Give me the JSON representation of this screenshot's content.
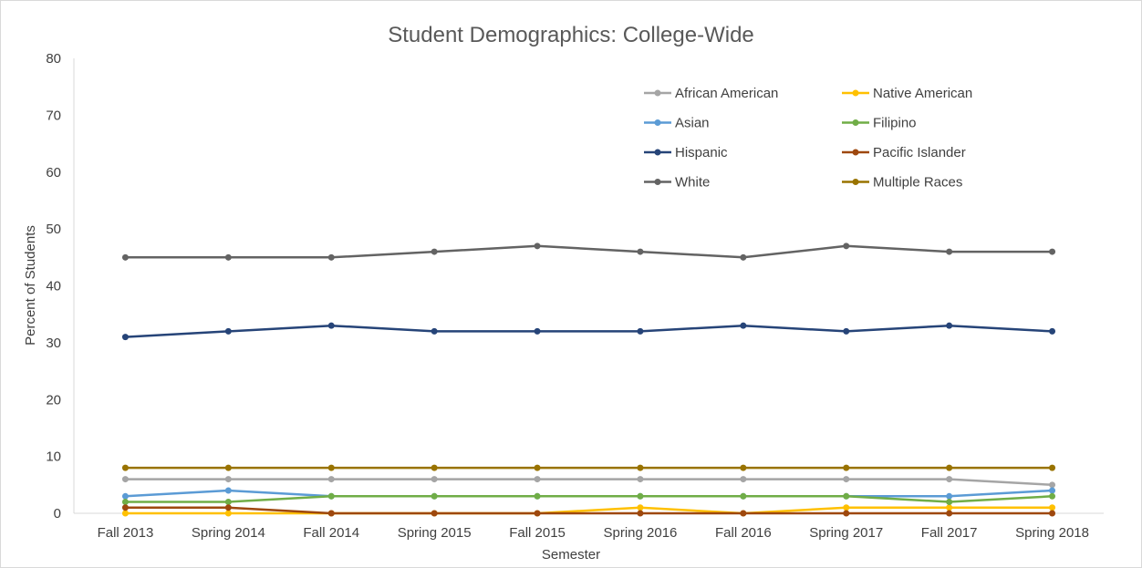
{
  "chart_data": {
    "type": "line",
    "title": "Student Demographics: College-Wide",
    "xlabel": "Semester",
    "ylabel": "Percent of Students",
    "ylim": [
      0,
      80
    ],
    "yticks": [
      0,
      10,
      20,
      30,
      40,
      50,
      60,
      70,
      80
    ],
    "grid": false,
    "legend_position": "top-right",
    "categories": [
      "Fall 2013",
      "Spring 2014",
      "Fall 2014",
      "Spring 2015",
      "Fall 2015",
      "Spring 2016",
      "Fall 2016",
      "Spring 2017",
      "Fall 2017",
      "Spring 2018"
    ],
    "series": [
      {
        "name": "African American",
        "color": "#a5a5a5",
        "values": [
          6,
          6,
          6,
          6,
          6,
          6,
          6,
          6,
          6,
          5
        ]
      },
      {
        "name": "Native American",
        "color": "#ffc000",
        "values": [
          0,
          0,
          0,
          0,
          0,
          1,
          0,
          1,
          1,
          1
        ]
      },
      {
        "name": "Asian",
        "color": "#5b9bd5",
        "values": [
          3,
          4,
          3,
          3,
          3,
          3,
          3,
          3,
          3,
          4
        ]
      },
      {
        "name": "Filipino",
        "color": "#70ad47",
        "values": [
          2,
          2,
          3,
          3,
          3,
          3,
          3,
          3,
          2,
          3
        ]
      },
      {
        "name": "Hispanic",
        "color": "#264478",
        "values": [
          31,
          32,
          33,
          32,
          32,
          32,
          33,
          32,
          33,
          32
        ]
      },
      {
        "name": "Pacific Islander",
        "color": "#9e480e",
        "values": [
          1,
          1,
          0,
          0,
          0,
          0,
          0,
          0,
          0,
          0
        ]
      },
      {
        "name": "White",
        "color": "#636363",
        "values": [
          45,
          45,
          45,
          46,
          47,
          46,
          45,
          47,
          46,
          46
        ]
      },
      {
        "name": "Multiple Races",
        "color": "#997300",
        "values": [
          8,
          8,
          8,
          8,
          8,
          8,
          8,
          8,
          8,
          8
        ]
      }
    ]
  }
}
